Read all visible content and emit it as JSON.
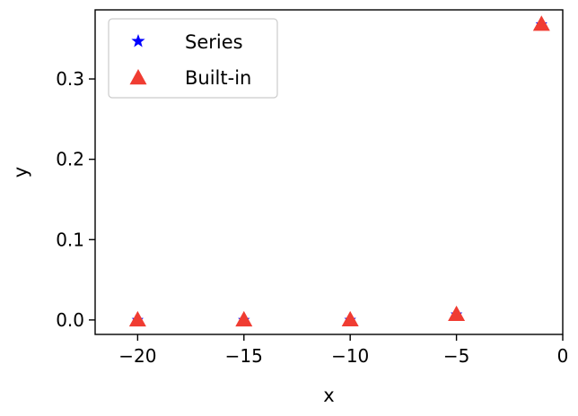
{
  "chart_data": {
    "type": "scatter",
    "xlabel": "x",
    "ylabel": "y",
    "xlim": [
      -22,
      0
    ],
    "ylim": [
      -0.018,
      0.386
    ],
    "xticks": [
      -20,
      -15,
      -10,
      -5,
      0
    ],
    "xtick_labels": [
      "−20",
      "−15",
      "−10",
      "−5",
      "0"
    ],
    "yticks": [
      0.0,
      0.1,
      0.2,
      0.3
    ],
    "ytick_labels": [
      "0.0",
      "0.1",
      "0.2",
      "0.3"
    ],
    "grid": false,
    "legend_position": "top-left",
    "series": [
      {
        "name": "Series",
        "marker": "star",
        "color": "#0000ff",
        "x": [
          -20,
          -15,
          -10,
          -5,
          -1
        ],
        "y": [
          2e-09,
          3e-07,
          4.54e-05,
          0.00674,
          0.3679
        ]
      },
      {
        "name": "Built-in",
        "marker": "triangle",
        "color": "#f03c32",
        "x": [
          -20,
          -15,
          -10,
          -5,
          -1
        ],
        "y": [
          2e-09,
          3e-07,
          4.54e-05,
          0.00674,
          0.3679
        ]
      }
    ]
  }
}
